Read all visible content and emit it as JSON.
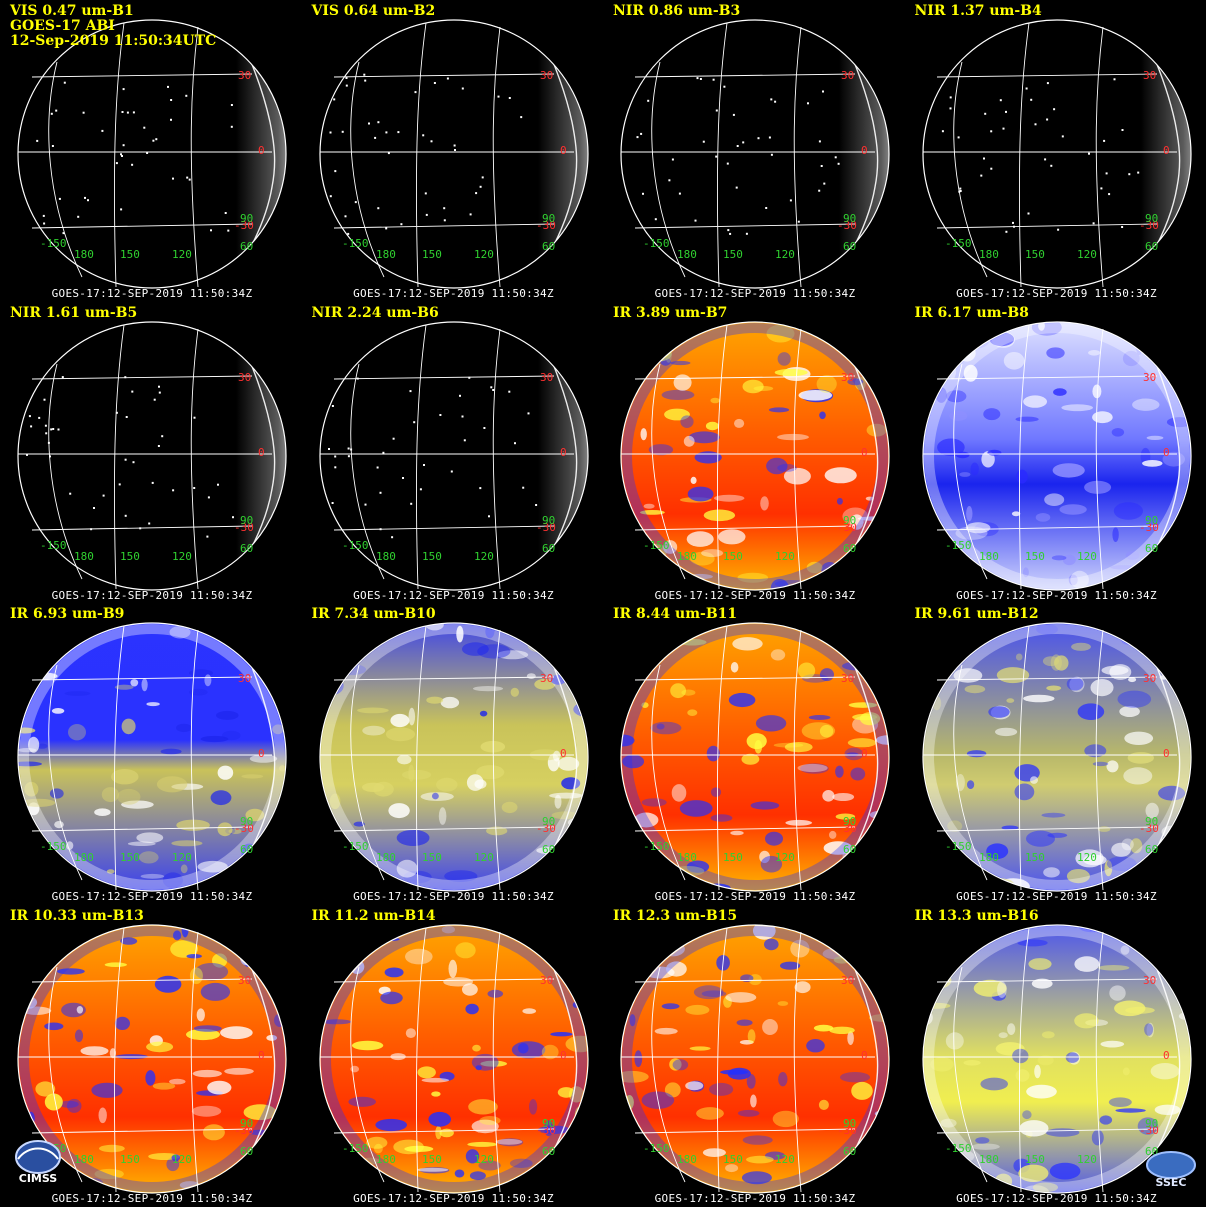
{
  "header": {
    "line2": "GOES-17 ABI",
    "line3": "12-Sep-2019 11:50:34UTC"
  },
  "footer_text": "GOES-17:12-SEP-2019 11:50:34Z",
  "labels": {
    "lat": [
      "30",
      "0",
      "-30"
    ],
    "lon": [
      "-150",
      "180",
      "150",
      "120",
      "60"
    ],
    "extra": "90"
  },
  "logos": {
    "left": "CIMSS",
    "right": "SSEC"
  },
  "colors": {
    "title": "#ffff00",
    "lat_label": "#ff3030",
    "lon_label": "#30d030",
    "grid": "#ffffff"
  },
  "panels": [
    {
      "title": "VIS 0.47 um-B1",
      "style": "vis"
    },
    {
      "title": "VIS 0.64 um-B2",
      "style": "vis"
    },
    {
      "title": "NIR 0.86 um-B3",
      "style": "vis"
    },
    {
      "title": "NIR 1.37 um-B4",
      "style": "vis"
    },
    {
      "title": "NIR 1.61 um-B5",
      "style": "vis"
    },
    {
      "title": "NIR 2.24 um-B6",
      "style": "vis"
    },
    {
      "title": "IR 3.89 um-B7",
      "style": "ir-warm"
    },
    {
      "title": "IR 6.17 um-B8",
      "style": "wv-light"
    },
    {
      "title": "IR 6.93 um-B9",
      "style": "wv-blue"
    },
    {
      "title": "IR 7.34 um-B10",
      "style": "wv-yellow"
    },
    {
      "title": "IR 8.44 um-B11",
      "style": "ir-warm"
    },
    {
      "title": "IR 9.61 um-B12",
      "style": "ozone"
    },
    {
      "title": "IR 10.33 um-B13",
      "style": "ir-warm"
    },
    {
      "title": "IR 11.2 um-B14",
      "style": "ir-warm"
    },
    {
      "title": "IR 12.3 um-B15",
      "style": "ir-warm"
    },
    {
      "title": "IR 13.3 um-B16",
      "style": "co2"
    }
  ]
}
